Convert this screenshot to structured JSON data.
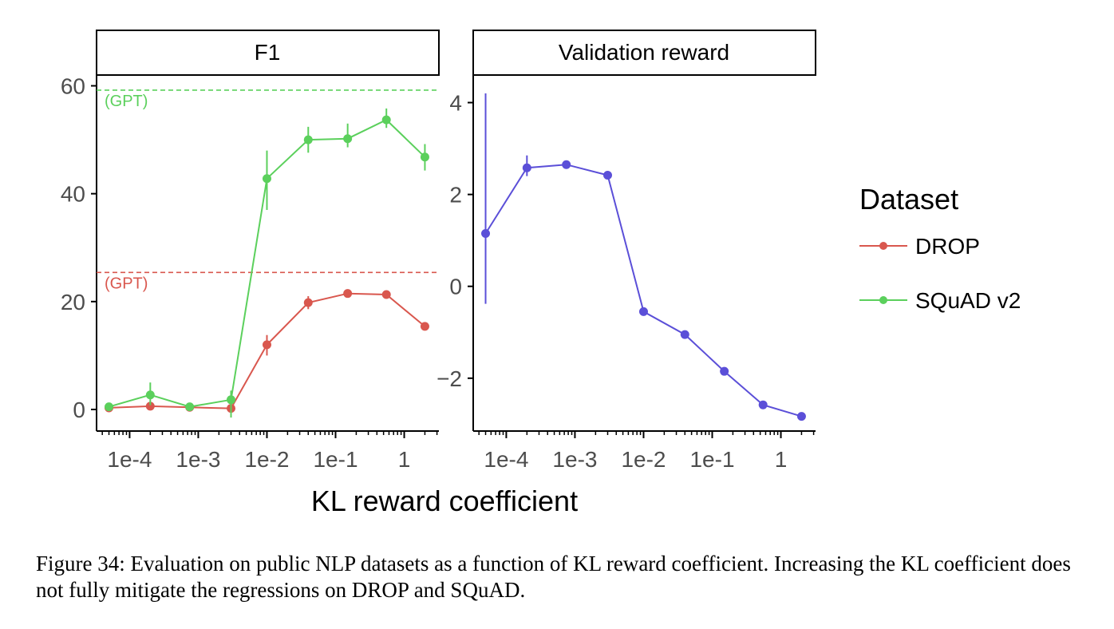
{
  "chart_data": [
    {
      "type": "line",
      "title": "F1",
      "xscale": "log",
      "xlim": [
        3.3e-05,
        3.2
      ],
      "ylim": [
        -4,
        62
      ],
      "xticks": [
        0.0001,
        0.001,
        0.01,
        0.1,
        1
      ],
      "xtick_labels": [
        "1e-4",
        "1e-3",
        "1e-2",
        "1e-1",
        "1"
      ],
      "yticks": [
        0,
        20,
        40,
        60
      ],
      "ytick_labels": [
        "0",
        "20",
        "40",
        "60"
      ],
      "grid": false,
      "x": [
        5e-05,
        0.0002,
        0.00075,
        0.003,
        0.01,
        0.04,
        0.15,
        0.55,
        2
      ],
      "series": [
        {
          "name": "DROP",
          "color": "#d9574e",
          "values": [
            0.3,
            0.6,
            0.4,
            0.2,
            12.0,
            19.8,
            21.5,
            21.3,
            15.4
          ],
          "err_low": [
            0,
            0,
            0,
            0,
            10.0,
            18.6,
            21.0,
            20.8,
            15.0
          ],
          "err_high": [
            0,
            0,
            0,
            0,
            13.8,
            21.0,
            22.0,
            21.8,
            15.8
          ]
        },
        {
          "name": "SQuAD v2",
          "color": "#5bd05c",
          "values": [
            0.5,
            2.7,
            0.5,
            1.8,
            42.8,
            50.0,
            50.2,
            53.7,
            46.8
          ],
          "err_low": [
            0,
            0.8,
            0,
            -1.5,
            37.0,
            47.6,
            48.6,
            52.2,
            44.3
          ],
          "err_high": [
            0,
            5.0,
            0,
            3.5,
            48.0,
            52.4,
            53.0,
            55.8,
            49.2
          ]
        }
      ],
      "reference_lines": [
        {
          "label": "(GPT)",
          "y": 59.2,
          "color": "#5bd05c"
        },
        {
          "label": "(GPT)",
          "y": 25.4,
          "color": "#d9574e"
        }
      ]
    },
    {
      "type": "line",
      "title": "Validation reward",
      "xscale": "log",
      "xlim": [
        3.3e-05,
        3.2
      ],
      "ylim": [
        -3.15,
        4.6
      ],
      "xticks": [
        0.0001,
        0.001,
        0.01,
        0.1,
        1
      ],
      "xtick_labels": [
        "1e-4",
        "1e-3",
        "1e-2",
        "1e-1",
        "1"
      ],
      "yticks": [
        -2,
        0,
        2,
        4
      ],
      "ytick_labels": [
        "−2",
        "0",
        "2",
        "4"
      ],
      "grid": false,
      "x": [
        5e-05,
        0.0002,
        0.00075,
        0.003,
        0.01,
        0.04,
        0.15,
        0.55,
        2
      ],
      "series": [
        {
          "color": "#5b4fd8",
          "values": [
            1.15,
            2.58,
            2.65,
            2.42,
            -0.55,
            -1.05,
            -1.85,
            -2.58,
            -2.83
          ],
          "err_low": [
            -0.38,
            2.4,
            0,
            0,
            0,
            0,
            0,
            0,
            0
          ],
          "err_high": [
            4.2,
            2.85,
            0,
            0,
            0,
            0,
            0,
            0,
            0
          ]
        }
      ]
    }
  ],
  "xlabel": "KL reward coefficient",
  "legend": {
    "title": "Dataset",
    "placement": "right",
    "items": [
      {
        "label": "DROP",
        "color": "#d9574e"
      },
      {
        "label": "SQuAD v2",
        "color": "#5bd05c"
      }
    ]
  },
  "caption": "Figure 34: Evaluation on public NLP datasets as a function of KL reward coefficient. Increasing the KL coefficient does not fully mitigate the regressions on DROP and SQuAD."
}
